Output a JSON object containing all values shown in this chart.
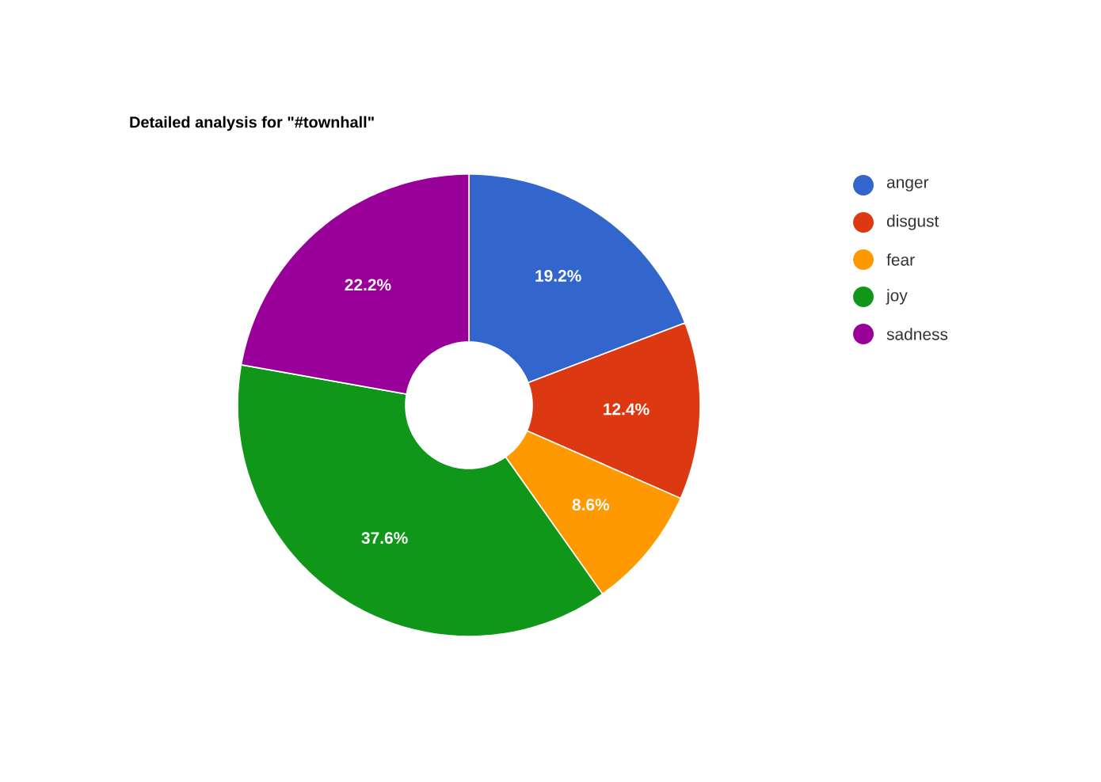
{
  "chart_data": {
    "type": "donut",
    "title": "Detailed analysis for \"#townhall\"",
    "categories": [
      "anger",
      "disgust",
      "fear",
      "joy",
      "sadness"
    ],
    "values": [
      19.2,
      12.4,
      8.6,
      37.6,
      22.2
    ],
    "colors": [
      "#3366cc",
      "#dc3912",
      "#ff9900",
      "#109618",
      "#990099"
    ],
    "value_labels": [
      "19.2%",
      "12.4%",
      "8.6%",
      "37.6%",
      "22.2%"
    ],
    "legend": "right"
  }
}
